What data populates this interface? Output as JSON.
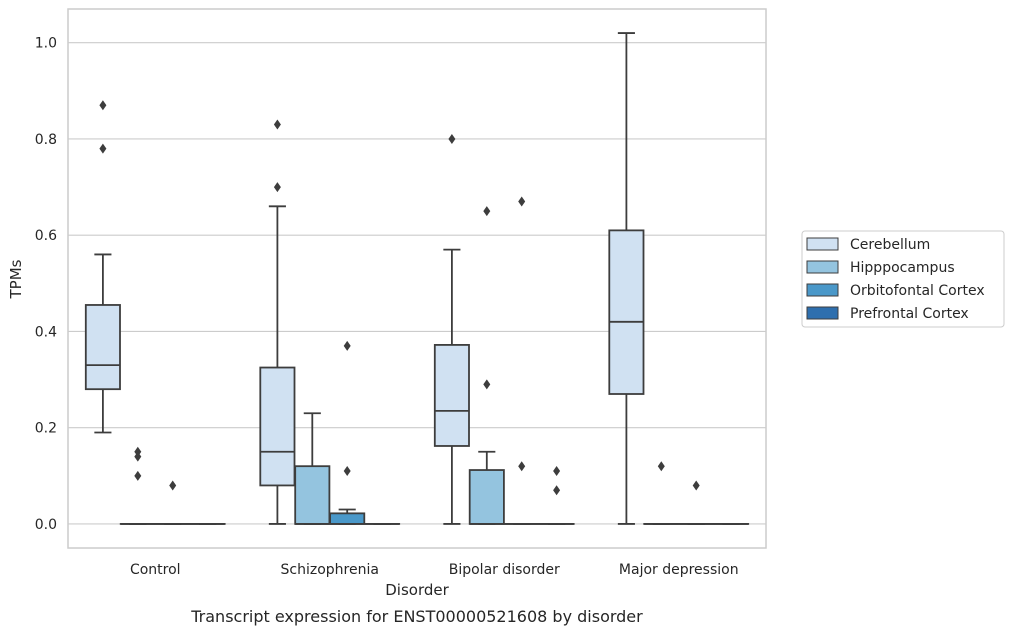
{
  "chart_data": {
    "type": "box",
    "title": "",
    "caption": "Transcript expression for ENST00000521608 by disorder",
    "xlabel": "Disorder",
    "ylabel": "TPMs",
    "ylim": [
      -0.05,
      1.07
    ],
    "yticks": [
      0.0,
      0.2,
      0.4,
      0.6,
      0.8,
      1.0
    ],
    "ytick_labels": [
      "0.0",
      "0.2",
      "0.4",
      "0.6",
      "0.8",
      "1.0"
    ],
    "grid": true,
    "legend_position": "right",
    "categories": [
      "Control",
      "Schizophrenia",
      "Bipolar disorder",
      "Major depression"
    ],
    "series": [
      {
        "name": "Cerebellum",
        "color": "#d0e1f2",
        "boxes": [
          {
            "whislo": 0.19,
            "q1": 0.28,
            "med": 0.33,
            "q3": 0.455,
            "whishi": 0.56,
            "fliers": [
              0.87,
              0.78
            ]
          },
          {
            "whislo": 0.0,
            "q1": 0.08,
            "med": 0.15,
            "q3": 0.325,
            "whishi": 0.66,
            "fliers": [
              0.83,
              0.7
            ]
          },
          {
            "whislo": 0.0,
            "q1": 0.162,
            "med": 0.235,
            "q3": 0.372,
            "whishi": 0.57,
            "fliers": [
              0.8
            ]
          },
          {
            "whislo": 0.0,
            "q1": 0.27,
            "med": 0.42,
            "q3": 0.61,
            "whishi": 1.02,
            "fliers": []
          }
        ]
      },
      {
        "name": "Hipppocampus",
        "color": "#94c4df",
        "boxes": [
          {
            "whislo": 0.0,
            "q1": 0.0,
            "med": 0.0,
            "q3": 0.0,
            "whishi": 0.0,
            "fliers": [
              0.15,
              0.14,
              0.1
            ]
          },
          {
            "whislo": 0.0,
            "q1": 0.0,
            "med": 0.0,
            "q3": 0.12,
            "whishi": 0.23,
            "fliers": []
          },
          {
            "whislo": 0.0,
            "q1": 0.0,
            "med": 0.0,
            "q3": 0.112,
            "whishi": 0.15,
            "fliers": [
              0.65,
              0.29
            ]
          },
          {
            "whislo": 0.0,
            "q1": 0.0,
            "med": 0.0,
            "q3": 0.0,
            "whishi": 0.0,
            "fliers": [
              0.12
            ]
          }
        ]
      },
      {
        "name": "Orbitofontal Cortex",
        "color": "#4a98c9",
        "boxes": [
          {
            "whislo": 0.0,
            "q1": 0.0,
            "med": 0.0,
            "q3": 0.0,
            "whishi": 0.0,
            "fliers": [
              0.08
            ]
          },
          {
            "whislo": 0.0,
            "q1": 0.0,
            "med": 0.0,
            "q3": 0.022,
            "whishi": 0.03,
            "fliers": [
              0.37,
              0.11
            ]
          },
          {
            "whislo": 0.0,
            "q1": 0.0,
            "med": 0.0,
            "q3": 0.0,
            "whishi": 0.0,
            "fliers": [
              0.67,
              0.12
            ]
          },
          {
            "whislo": 0.0,
            "q1": 0.0,
            "med": 0.0,
            "q3": 0.0,
            "whishi": 0.0,
            "fliers": [
              0.08
            ]
          }
        ]
      },
      {
        "name": "Prefrontal Cortex",
        "color": "#2e6fae",
        "boxes": [
          {
            "whislo": 0.0,
            "q1": 0.0,
            "med": 0.0,
            "q3": 0.0,
            "whishi": 0.0,
            "fliers": []
          },
          {
            "whislo": 0.0,
            "q1": 0.0,
            "med": 0.0,
            "q3": 0.0,
            "whishi": 0.0,
            "fliers": []
          },
          {
            "whislo": 0.0,
            "q1": 0.0,
            "med": 0.0,
            "q3": 0.0,
            "whishi": 0.0,
            "fliers": [
              0.11,
              0.07
            ]
          },
          {
            "whislo": 0.0,
            "q1": 0.0,
            "med": 0.0,
            "q3": 0.0,
            "whishi": 0.0,
            "fliers": []
          }
        ]
      }
    ]
  }
}
